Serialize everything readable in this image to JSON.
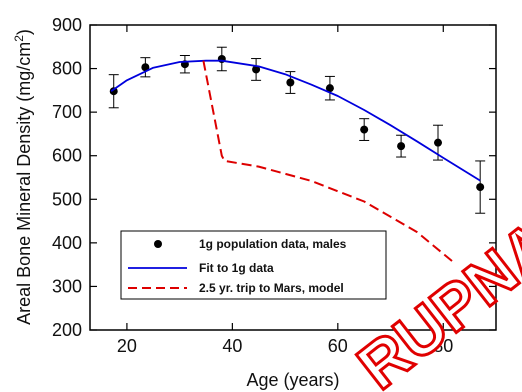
{
  "stamp": {
    "text": "RUPNATH"
  },
  "chart_data": {
    "type": "scatter",
    "xlabel": "Age (years)",
    "ylabel_main": "Areal Bone Mineral Density (mg/cm",
    "ylabel_sup": "2",
    "ylabel_close": ")",
    "xlim": [
      13,
      90
    ],
    "ylim": [
      200,
      900
    ],
    "xticks": [
      20,
      40,
      60,
      80
    ],
    "yticks": [
      200,
      300,
      400,
      500,
      600,
      700,
      800,
      900
    ],
    "grid": false,
    "legend_position": "bottom-left",
    "series": [
      {
        "name": "1g population data, males",
        "kind": "points",
        "color": "#000000",
        "x": [
          17.5,
          23.5,
          31,
          38,
          44.5,
          51,
          58.5,
          65,
          72,
          79,
          87
        ],
        "y": [
          748,
          803,
          810,
          822,
          798,
          768,
          755,
          660,
          622,
          630,
          528
        ],
        "err": [
          38,
          22,
          20,
          27,
          25,
          25,
          27,
          25,
          25,
          40,
          60
        ]
      },
      {
        "name": "Fit to 1g data",
        "kind": "line",
        "color": "#0000dd",
        "x": [
          17,
          20,
          25,
          30,
          35,
          38,
          45,
          50,
          55,
          60,
          65,
          70,
          75,
          80,
          87
        ],
        "y": [
          748,
          773,
          802,
          815,
          818,
          818,
          805,
          787,
          763,
          737,
          705,
          670,
          633,
          595,
          543
        ]
      },
      {
        "name": "2.5 yr. trip to Mars, model",
        "kind": "dashed-line",
        "color": "#dd0000",
        "x": [
          34.5,
          38,
          38.5,
          45,
          55,
          65,
          75,
          82
        ],
        "y": [
          818,
          600,
          588,
          575,
          542,
          495,
          425,
          355
        ]
      }
    ]
  }
}
